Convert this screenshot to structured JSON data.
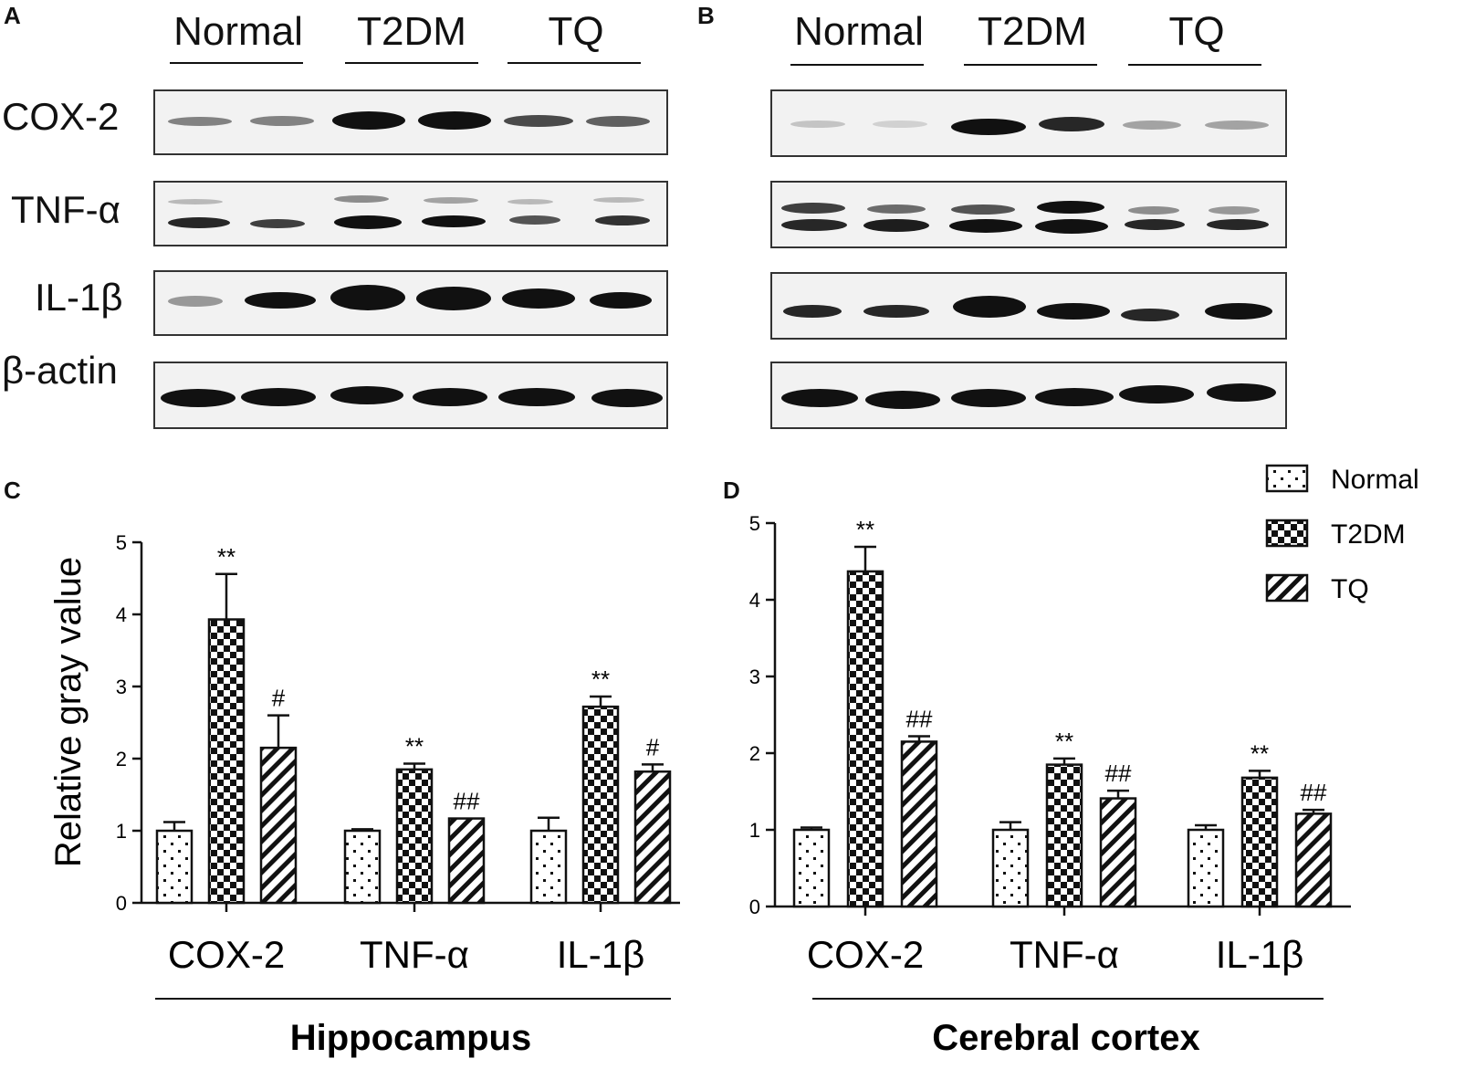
{
  "panels": {
    "a": "A",
    "b": "B",
    "c": "C",
    "d": "D"
  },
  "western_blot": {
    "groups": [
      "Normal",
      "T2DM",
      "TQ"
    ],
    "proteins": [
      "COX-2",
      "TNF-α",
      "IL-1β",
      "β-actin"
    ]
  },
  "legend": [
    "Normal",
    "T2DM",
    "TQ"
  ],
  "chart_data": [
    {
      "type": "bar",
      "panel": "C",
      "title": "",
      "xlabel": "Hippocampus",
      "ylabel": "Relative gray value",
      "ylim": [
        0,
        5
      ],
      "yticks": [
        "0",
        "1",
        "2",
        "3",
        "4",
        "5"
      ],
      "categories": [
        "COX-2",
        "TNF-α",
        "IL-1β"
      ],
      "series": [
        {
          "name": "Normal",
          "values": [
            1.0,
            1.0,
            1.0
          ],
          "errors": [
            0.12,
            0.02,
            0.18
          ],
          "marks": [
            "",
            "",
            ""
          ],
          "pattern": "dots"
        },
        {
          "name": "T2DM",
          "values": [
            3.93,
            1.85,
            2.72
          ],
          "errors": [
            0.63,
            0.08,
            0.14
          ],
          "marks": [
            "**",
            "**",
            "**"
          ],
          "pattern": "checker"
        },
        {
          "name": "TQ",
          "values": [
            2.15,
            1.17,
            1.82
          ],
          "errors": [
            0.45,
            0.0,
            0.1
          ],
          "marks": [
            "#",
            "##",
            "#"
          ],
          "pattern": "stripes"
        }
      ]
    },
    {
      "type": "bar",
      "panel": "D",
      "title": "",
      "xlabel": "Cerebral cortex",
      "ylabel": "",
      "ylim": [
        0,
        5
      ],
      "yticks": [
        "0",
        "1",
        "2",
        "3",
        "4",
        "5"
      ],
      "categories": [
        "COX-2",
        "TNF-α",
        "IL-1β"
      ],
      "series": [
        {
          "name": "Normal",
          "values": [
            1.0,
            1.0,
            1.0
          ],
          "errors": [
            0.03,
            0.1,
            0.06
          ],
          "marks": [
            "",
            "",
            ""
          ],
          "pattern": "dots"
        },
        {
          "name": "T2DM",
          "values": [
            4.37,
            1.85,
            1.68
          ],
          "errors": [
            0.32,
            0.08,
            0.09
          ],
          "marks": [
            "**",
            "**",
            "**"
          ],
          "pattern": "checker"
        },
        {
          "name": "TQ",
          "values": [
            2.15,
            1.41,
            1.21
          ],
          "errors": [
            0.07,
            0.1,
            0.05
          ],
          "marks": [
            "##",
            "##",
            "##"
          ],
          "pattern": "stripes"
        }
      ]
    }
  ]
}
